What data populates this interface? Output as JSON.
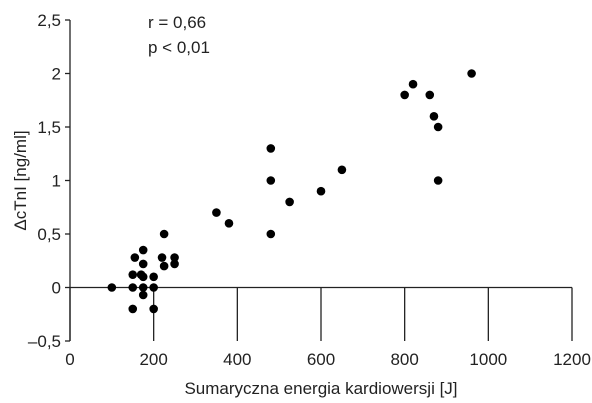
{
  "chart_data": {
    "type": "scatter",
    "xlabel": "Sumaryczna energia kardiowersji [J]",
    "ylabel": "ΔcTnI [ng/ml]",
    "xlim": [
      0,
      1200
    ],
    "ylim": [
      -0.5,
      2.5
    ],
    "x_ticks": [
      0,
      200,
      400,
      600,
      800,
      1000,
      1200
    ],
    "y_ticks": [
      -0.5,
      0,
      0.5,
      1,
      1.5,
      2,
      2.5
    ],
    "x_tick_labels": [
      "0",
      "200",
      "400",
      "600",
      "800",
      "1000",
      "1200"
    ],
    "y_tick_labels": [
      "–0,5",
      "0",
      "0,5",
      "1",
      "1,5",
      "2",
      "2,5"
    ],
    "grid": false,
    "annotations": [
      "r = 0,66",
      "p < 0,01"
    ],
    "marker_color": "#000000",
    "points": [
      {
        "x": 100,
        "y": 0
      },
      {
        "x": 150,
        "y": 0.12
      },
      {
        "x": 150,
        "y": 0
      },
      {
        "x": 150,
        "y": -0.2
      },
      {
        "x": 155,
        "y": 0.28
      },
      {
        "x": 170,
        "y": 0.12
      },
      {
        "x": 175,
        "y": 0.35
      },
      {
        "x": 175,
        "y": 0.22
      },
      {
        "x": 175,
        "y": 0
      },
      {
        "x": 175,
        "y": 0.1
      },
      {
        "x": 175,
        "y": -0.07
      },
      {
        "x": 200,
        "y": 0.1
      },
      {
        "x": 200,
        "y": 0
      },
      {
        "x": 200,
        "y": -0.2
      },
      {
        "x": 220,
        "y": 0.28
      },
      {
        "x": 225,
        "y": 0.5
      },
      {
        "x": 225,
        "y": 0.2
      },
      {
        "x": 250,
        "y": 0.28
      },
      {
        "x": 250,
        "y": 0.22
      },
      {
        "x": 350,
        "y": 0.7
      },
      {
        "x": 380,
        "y": 0.6
      },
      {
        "x": 480,
        "y": 1.3
      },
      {
        "x": 480,
        "y": 1.0
      },
      {
        "x": 480,
        "y": 0.5
      },
      {
        "x": 525,
        "y": 0.8
      },
      {
        "x": 600,
        "y": 0.9
      },
      {
        "x": 650,
        "y": 1.1
      },
      {
        "x": 800,
        "y": 1.8
      },
      {
        "x": 820,
        "y": 1.9
      },
      {
        "x": 860,
        "y": 1.8
      },
      {
        "x": 870,
        "y": 1.6
      },
      {
        "x": 880,
        "y": 1.5
      },
      {
        "x": 880,
        "y": 1.0
      },
      {
        "x": 960,
        "y": 2.0
      }
    ]
  }
}
